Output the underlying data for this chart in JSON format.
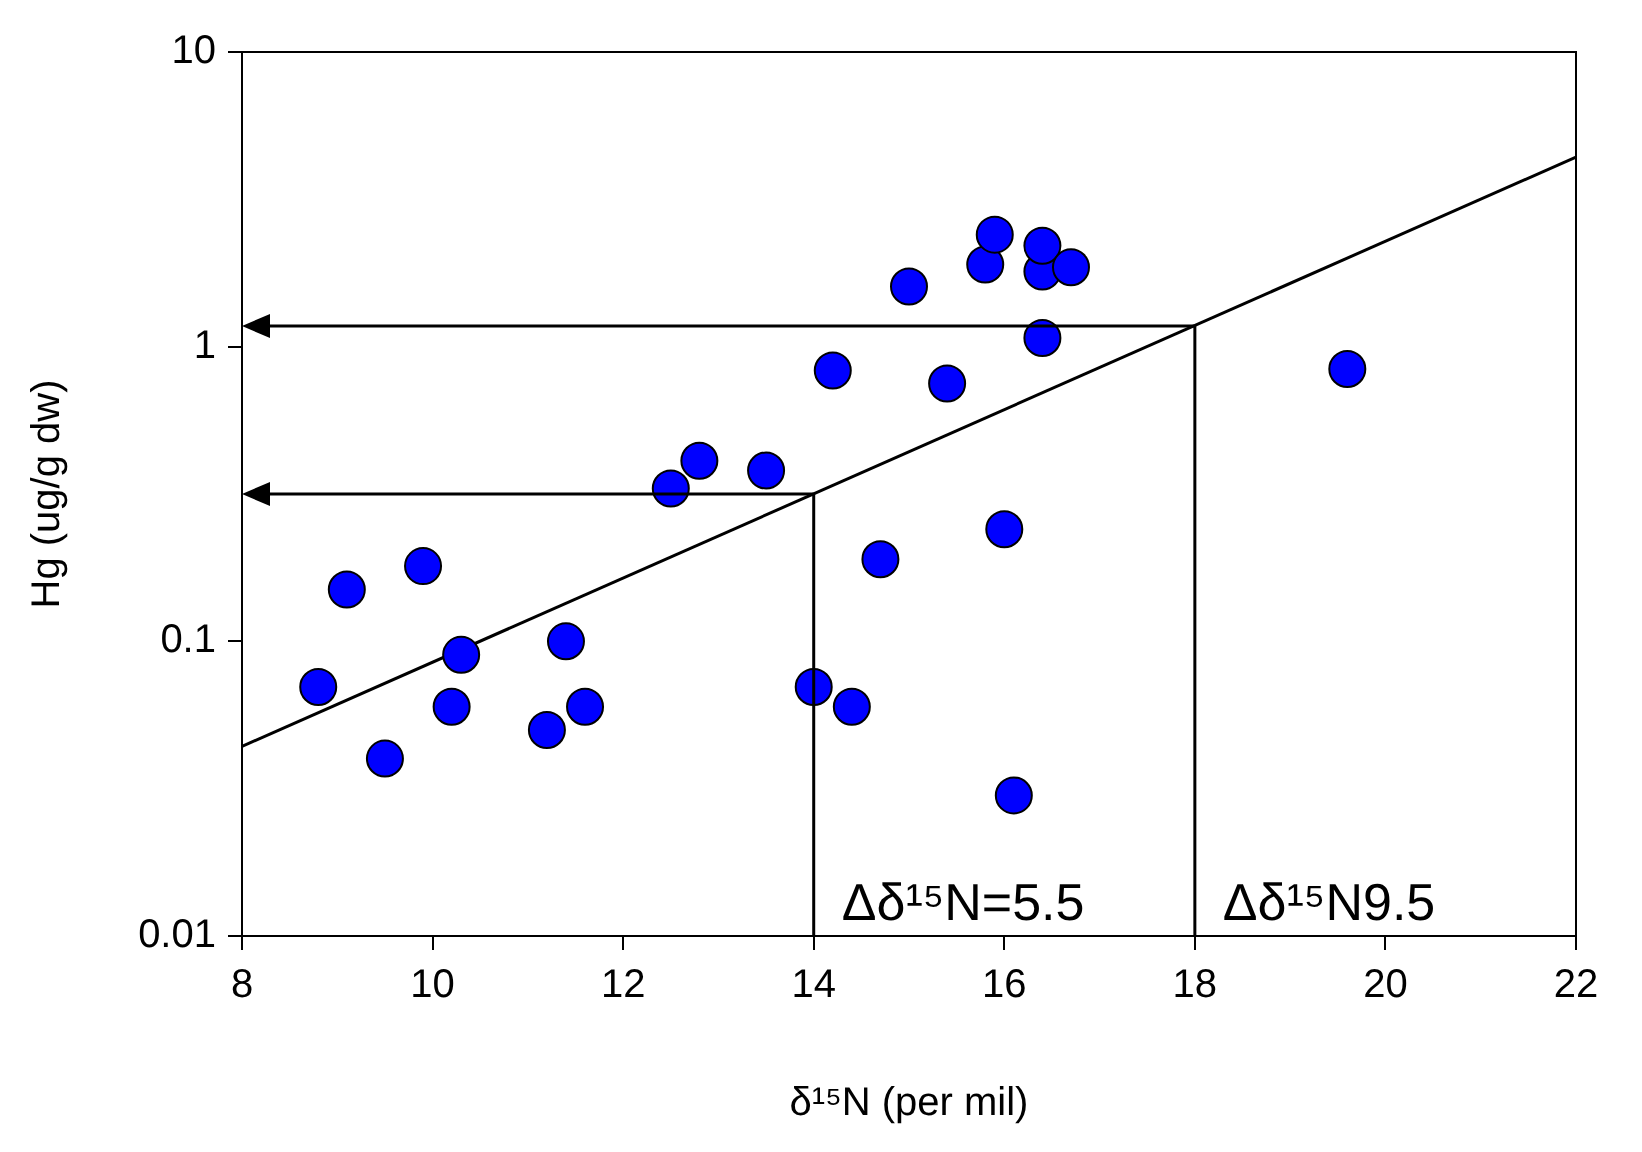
{
  "chart_data": {
    "type": "scatter",
    "xlabel": "δ¹⁵N (per mil)",
    "ylabel": "Hg (ug/g dw)",
    "log": "y",
    "grid": false,
    "legend": false,
    "marker": "circle",
    "xlim": [
      8,
      22
    ],
    "xticks": [
      8,
      10,
      12,
      14,
      16,
      18,
      20,
      22
    ],
    "ylim": [
      0.01,
      10
    ],
    "yticks": [
      0.01,
      0.1,
      1,
      10
    ],
    "series": [
      {
        "color": "#0000ff",
        "x": [
          8.8,
          9.1,
          9.5,
          9.9,
          10.2,
          10.3,
          11.2,
          11.4,
          11.6,
          12.5,
          12.8,
          13.5,
          14.0,
          14.2,
          14.4,
          14.7,
          15.0,
          15.4,
          15.8,
          15.9,
          16.0,
          16.1,
          16.4,
          16.4,
          16.4,
          16.7,
          19.6
        ],
        "values": [
          0.07,
          0.15,
          0.04,
          0.18,
          0.06,
          0.09,
          0.05,
          0.1,
          0.06,
          0.33,
          0.41,
          0.38,
          0.07,
          0.83,
          0.06,
          0.19,
          1.6,
          0.75,
          1.9,
          2.4,
          0.24,
          0.03,
          1.07,
          1.8,
          2.2,
          1.86,
          0.84
        ]
      },
      {
        "type": "line",
        "color": "#000000",
        "marker": "none",
        "x": [
          8,
          22
        ],
        "values": [
          0.044,
          4.4
        ]
      }
    ],
    "ref_lines": [
      {
        "axis": "x",
        "value": 14,
        "color": "#000000"
      },
      {
        "axis": "x",
        "value": 18,
        "color": "#000000"
      }
    ],
    "annotations": [
      "Δδ¹⁵N=5.5",
      "Δδ¹⁵N9.5"
    ]
  }
}
